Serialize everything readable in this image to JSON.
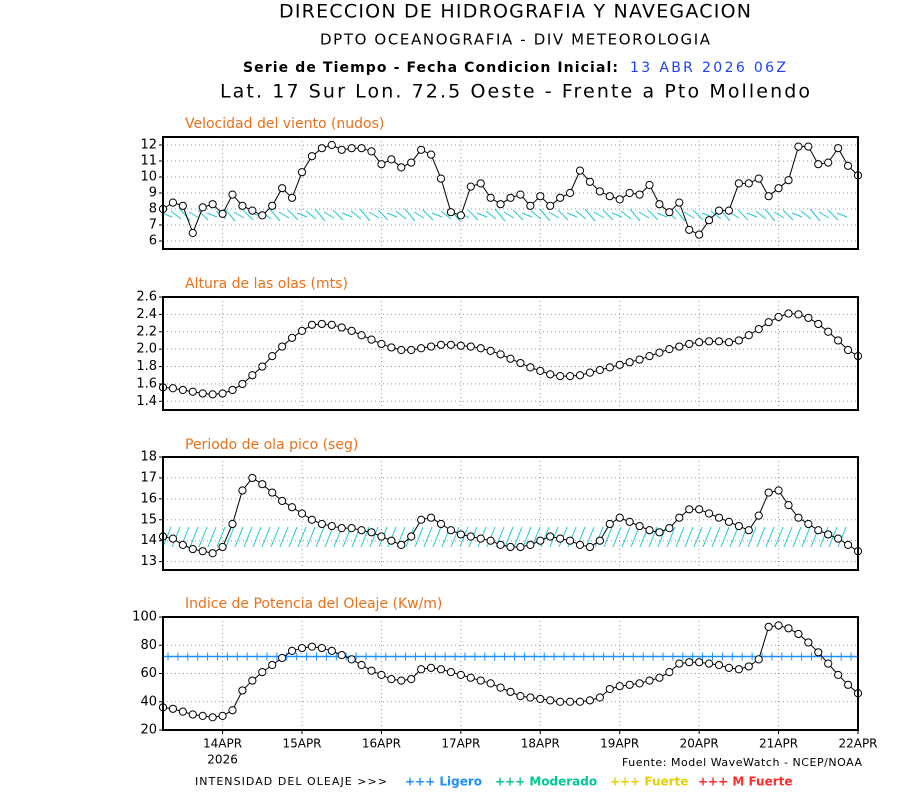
{
  "header": {
    "line1": "DIRECCION DE HIDROGRAFIA Y NAVEGACION",
    "line2": "DPTO OCEANOGRAFIA - DIV METEOROLOGIA",
    "line3": "Serie de Tiempo - Fecha Condicion Inicial:",
    "date": "13 ABR 2026 06Z",
    "line4": "Lat. 17 Sur  Lon. 72.5 Oeste - Frente a Pto Mollendo"
  },
  "x_axis": {
    "xlim": [
      -0.75,
      8
    ],
    "xticks": [
      {
        "value": 0,
        "label": "14APR"
      },
      {
        "value": 1,
        "label": "15APR"
      },
      {
        "value": 2,
        "label": "16APR"
      },
      {
        "value": 3,
        "label": "17APR"
      },
      {
        "value": 4,
        "label": "18APR"
      },
      {
        "value": 5,
        "label": "19APR"
      },
      {
        "value": 6,
        "label": "20APR"
      },
      {
        "value": 7,
        "label": "21APR"
      },
      {
        "value": 8,
        "label": "22APR"
      }
    ],
    "year": "2026"
  },
  "chart_data": [
    {
      "type": "line",
      "title": "Velocidad del viento (nudos)",
      "ylim": [
        5.5,
        12.5
      ],
      "yticks": [
        6,
        7,
        8,
        9,
        10,
        11,
        12
      ],
      "grid": true,
      "color": "#000000",
      "values": [
        8.0,
        8.4,
        8.2,
        6.5,
        8.1,
        8.3,
        7.7,
        8.9,
        8.2,
        7.9,
        7.6,
        8.2,
        9.3,
        8.7,
        10.3,
        11.3,
        11.8,
        12.0,
        11.7,
        11.8,
        11.8,
        11.6,
        10.8,
        11.1,
        10.6,
        10.9,
        11.7,
        11.4,
        9.9,
        7.8,
        7.6,
        9.4,
        9.6,
        8.7,
        8.3,
        8.7,
        8.9,
        8.2,
        8.8,
        8.2,
        8.7,
        9.0,
        10.4,
        9.7,
        9.1,
        8.8,
        8.6,
        9.0,
        8.9,
        9.5,
        8.3,
        7.8,
        8.4,
        6.7,
        6.4,
        7.3,
        7.9,
        7.9,
        9.6,
        9.6,
        9.9,
        8.8,
        9.3,
        9.8,
        11.9,
        11.9,
        10.8,
        10.9,
        11.8,
        10.7,
        10.1
      ]
    },
    {
      "type": "line",
      "title": "Altura de las olas (mts)",
      "ylim": [
        1.3,
        2.6
      ],
      "yticks": [
        1.4,
        1.6,
        1.8,
        {
          "value": 2,
          "label": "2.0"
        },
        2.2,
        2.4,
        2.6
      ],
      "grid": true,
      "color": "#000000",
      "values": [
        1.56,
        1.55,
        1.53,
        1.51,
        1.49,
        1.48,
        1.49,
        1.53,
        1.6,
        1.7,
        1.8,
        1.92,
        2.03,
        2.13,
        2.21,
        2.28,
        2.29,
        2.28,
        2.25,
        2.21,
        2.16,
        2.11,
        2.06,
        2.02,
        1.99,
        1.99,
        2.01,
        2.03,
        2.05,
        2.05,
        2.04,
        2.03,
        2.01,
        1.98,
        1.94,
        1.89,
        1.84,
        1.79,
        1.75,
        1.71,
        1.69,
        1.69,
        1.7,
        1.73,
        1.76,
        1.79,
        1.82,
        1.85,
        1.88,
        1.92,
        1.96,
        2.0,
        2.03,
        2.06,
        2.08,
        2.09,
        2.09,
        2.08,
        2.1,
        2.16,
        2.23,
        2.31,
        2.37,
        2.41,
        2.4,
        2.36,
        2.29,
        2.2,
        2.1,
        1.99,
        1.92
      ]
    },
    {
      "type": "line",
      "title": "Periodo de ola pico (seg)",
      "ylim": [
        12.6,
        18
      ],
      "yticks": [
        13,
        14,
        15,
        16,
        17,
        18
      ],
      "grid": true,
      "color": "#000000",
      "values": [
        14.2,
        14.1,
        13.8,
        13.6,
        13.5,
        13.4,
        13.7,
        14.8,
        16.4,
        17.0,
        16.7,
        16.3,
        15.9,
        15.6,
        15.3,
        15.0,
        14.8,
        14.7,
        14.6,
        14.6,
        14.5,
        14.4,
        14.2,
        14.0,
        13.8,
        14.2,
        15.0,
        15.1,
        14.8,
        14.5,
        14.3,
        14.2,
        14.1,
        14.0,
        13.8,
        13.7,
        13.7,
        13.8,
        14.0,
        14.2,
        14.1,
        14.0,
        13.8,
        13.7,
        14.0,
        14.8,
        15.1,
        14.9,
        14.7,
        14.5,
        14.4,
        14.6,
        15.1,
        15.5,
        15.5,
        15.3,
        15.1,
        14.9,
        14.7,
        14.5,
        15.2,
        16.3,
        16.4,
        15.7,
        15.1,
        14.8,
        14.5,
        14.3,
        14.1,
        13.8,
        13.5
      ]
    },
    {
      "type": "line",
      "title": "Indice de Potencia del Oleaje (Kw/m)",
      "ylim": [
        20,
        100
      ],
      "yticks": [
        20,
        40,
        60,
        80,
        100
      ],
      "grid": true,
      "color": "#000000",
      "reference_line": {
        "value": 72,
        "color": "#1e90ff"
      },
      "values": [
        36,
        35,
        33,
        31,
        30,
        29,
        30,
        34,
        48,
        55,
        61,
        66,
        71,
        76,
        78,
        79,
        78,
        76,
        73,
        70,
        66,
        62,
        59,
        56,
        55,
        56,
        63,
        64,
        63,
        61,
        59,
        57,
        55,
        53,
        50,
        47,
        44,
        43,
        42,
        41,
        40,
        40,
        40,
        41,
        43,
        49,
        51,
        52,
        53,
        55,
        57,
        61,
        67,
        68,
        68,
        67,
        66,
        64,
        63,
        65,
        70,
        93,
        94,
        92,
        88,
        82,
        75,
        67,
        59,
        52,
        46
      ]
    }
  ],
  "footer": {
    "source": "Fuente: Model WaveWatch - NCEP/NOAA",
    "intensity": "INTENSIDAD DEL OLEAJE >>>",
    "legend": [
      {
        "label": "+++ Ligero",
        "color": "#1e90ff"
      },
      {
        "label": "+++ Moderado",
        "color": "#00c896"
      },
      {
        "label": "+++ Fuerte",
        "color": "#e8d000"
      },
      {
        "label": "+++ M Fuerte",
        "color": "#ff2a2a"
      }
    ]
  }
}
